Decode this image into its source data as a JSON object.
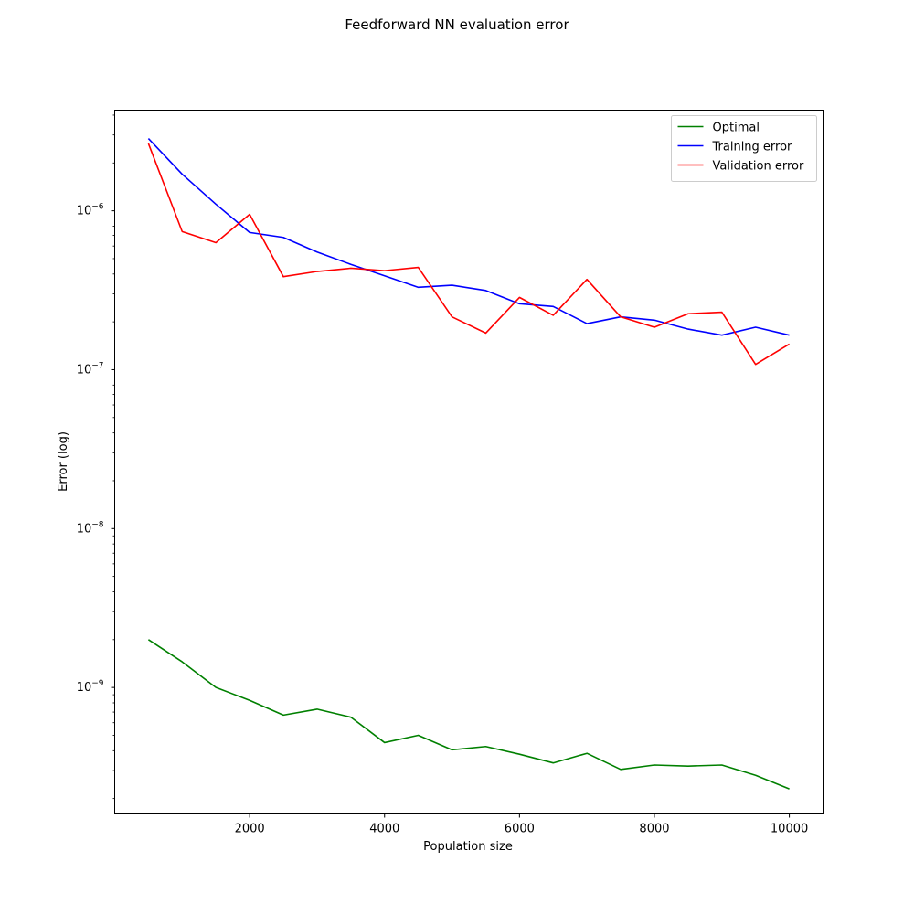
{
  "chart_data": {
    "type": "line",
    "title": "Feedforward NN evaluation error",
    "xlabel": "Population size",
    "ylabel": "Error (log)",
    "xscale": "linear",
    "yscale": "log",
    "xlim": [
      0,
      10500
    ],
    "ylim": [
      1.6e-10,
      4.3e-06
    ],
    "xticks": [
      2000,
      4000,
      6000,
      8000,
      10000
    ],
    "xtick_labels": [
      "2000",
      "4000",
      "6000",
      "8000",
      "10000"
    ],
    "yticks": [
      {
        "base": "10",
        "exp": "−9",
        "value": 1e-09
      },
      {
        "base": "10",
        "exp": "−8",
        "value": 1e-08
      },
      {
        "base": "10",
        "exp": "−7",
        "value": 1e-07
      },
      {
        "base": "10",
        "exp": "−6",
        "value": 1e-06
      }
    ],
    "legend_position": "upper right",
    "grid": false,
    "x": [
      500,
      1000,
      1500,
      2000,
      2500,
      3000,
      3500,
      4000,
      4500,
      5000,
      5500,
      6000,
      6500,
      7000,
      7500,
      8000,
      8500,
      9000,
      9500,
      10000
    ],
    "series": [
      {
        "name": "Optimal",
        "color": "#008000",
        "values": [
          2e-09,
          1.45e-09,
          1e-09,
          8.3e-10,
          6.7e-10,
          7.3e-10,
          6.5e-10,
          4.5e-10,
          5e-10,
          4.05e-10,
          4.25e-10,
          3.8e-10,
          3.35e-10,
          3.85e-10,
          3.05e-10,
          3.25e-10,
          3.2e-10,
          3.25e-10,
          2.8e-10,
          2.3e-10
        ]
      },
      {
        "name": "Training error",
        "color": "#0000ff",
        "values": [
          2.85e-06,
          1.7e-06,
          1.1e-06,
          7.3e-07,
          6.8e-07,
          5.5e-07,
          4.6e-07,
          3.9e-07,
          3.3e-07,
          3.4e-07,
          3.15e-07,
          2.6e-07,
          2.5e-07,
          1.95e-07,
          2.15e-07,
          2.05e-07,
          1.8e-07,
          1.65e-07,
          1.85e-07,
          1.65e-07
        ]
      },
      {
        "name": "Validation error",
        "color": "#ff0000",
        "values": [
          2.65e-06,
          7.4e-07,
          6.3e-07,
          9.5e-07,
          3.85e-07,
          4.15e-07,
          4.35e-07,
          4.2e-07,
          4.4e-07,
          2.15e-07,
          1.7e-07,
          2.85e-07,
          2.2e-07,
          3.7e-07,
          2.15e-07,
          1.85e-07,
          2.25e-07,
          2.3e-07,
          1.08e-07,
          1.45e-07
        ]
      }
    ]
  }
}
